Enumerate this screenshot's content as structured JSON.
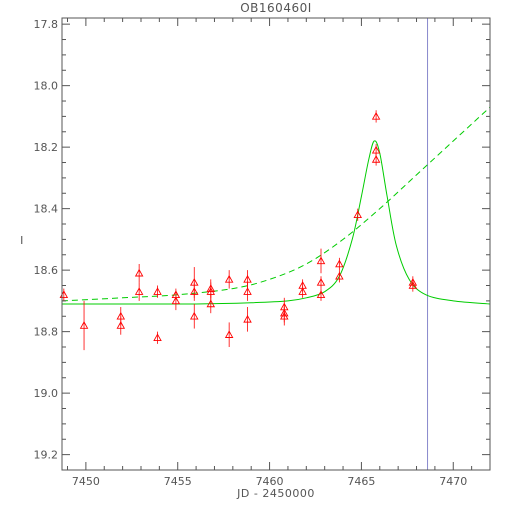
{
  "chart_data": {
    "type": "scatter",
    "title": "OB160460I",
    "xlabel": "JD - 2450000",
    "ylabel": "I",
    "xlim": [
      7448.7,
      7472
    ],
    "ylim": [
      19.25,
      17.78
    ],
    "y_inverted": true,
    "grid": false,
    "x_ticks": [
      7450,
      7455,
      7460,
      7465,
      7470
    ],
    "x_tick_labels": [
      "7450",
      "7455",
      "7460",
      "7465",
      "7470"
    ],
    "y_ticks": [
      17.8,
      18.0,
      18.2,
      18.4,
      18.6,
      18.8,
      19.0,
      19.2
    ],
    "y_tick_labels": [
      "17.8",
      "18.0",
      "18.2",
      "18.4",
      "18.6",
      "18.8",
      "19.0",
      "19.2"
    ],
    "colors": {
      "observations": "#ff0000",
      "model_fits": "#00cc00",
      "vertical_marker": "#8888cc",
      "axes": "#555555"
    },
    "observations": [
      {
        "x": 7448.8,
        "y": 18.68,
        "err": 0.02
      },
      {
        "x": 7449.9,
        "y": 18.78,
        "err": 0.08
      },
      {
        "x": 7451.9,
        "y": 18.75,
        "err": 0.03
      },
      {
        "x": 7451.9,
        "y": 18.78,
        "err": 0.03
      },
      {
        "x": 7452.9,
        "y": 18.61,
        "err": 0.03
      },
      {
        "x": 7452.9,
        "y": 18.67,
        "err": 0.03
      },
      {
        "x": 7453.9,
        "y": 18.67,
        "err": 0.02
      },
      {
        "x": 7453.9,
        "y": 18.82,
        "err": 0.02
      },
      {
        "x": 7454.9,
        "y": 18.68,
        "err": 0.02
      },
      {
        "x": 7454.9,
        "y": 18.7,
        "err": 0.03
      },
      {
        "x": 7455.9,
        "y": 18.64,
        "err": 0.05
      },
      {
        "x": 7455.9,
        "y": 18.67,
        "err": 0.03
      },
      {
        "x": 7455.9,
        "y": 18.75,
        "err": 0.04
      },
      {
        "x": 7456.8,
        "y": 18.67,
        "err": 0.03
      },
      {
        "x": 7456.8,
        "y": 18.66,
        "err": 0.03
      },
      {
        "x": 7456.8,
        "y": 18.71,
        "err": 0.03
      },
      {
        "x": 7457.8,
        "y": 18.63,
        "err": 0.03
      },
      {
        "x": 7457.8,
        "y": 18.81,
        "err": 0.04
      },
      {
        "x": 7458.8,
        "y": 18.63,
        "err": 0.03
      },
      {
        "x": 7458.8,
        "y": 18.67,
        "err": 0.03
      },
      {
        "x": 7458.8,
        "y": 18.76,
        "err": 0.04
      },
      {
        "x": 7460.8,
        "y": 18.72,
        "err": 0.03
      },
      {
        "x": 7460.8,
        "y": 18.74,
        "err": 0.03
      },
      {
        "x": 7460.8,
        "y": 18.75,
        "err": 0.03
      },
      {
        "x": 7461.8,
        "y": 18.65,
        "err": 0.02
      },
      {
        "x": 7461.8,
        "y": 18.67,
        "err": 0.02
      },
      {
        "x": 7462.8,
        "y": 18.57,
        "err": 0.04
      },
      {
        "x": 7462.8,
        "y": 18.64,
        "err": 0.02
      },
      {
        "x": 7462.8,
        "y": 18.68,
        "err": 0.02
      },
      {
        "x": 7463.8,
        "y": 18.58,
        "err": 0.02
      },
      {
        "x": 7463.8,
        "y": 18.62,
        "err": 0.02
      },
      {
        "x": 7464.8,
        "y": 18.42,
        "err": 0.02
      },
      {
        "x": 7465.8,
        "y": 18.1,
        "err": 0.02
      },
      {
        "x": 7465.8,
        "y": 18.21,
        "err": 0.02
      },
      {
        "x": 7465.8,
        "y": 18.24,
        "err": 0.02
      },
      {
        "x": 7467.8,
        "y": 18.64,
        "err": 0.02
      },
      {
        "x": 7467.8,
        "y": 18.65,
        "err": 0.02
      }
    ],
    "series": [
      {
        "style": "solid",
        "x": [
          7448.7,
          7452,
          7456,
          7459,
          7461,
          7462,
          7463,
          7463.8,
          7464.5,
          7465,
          7465.4,
          7465.7,
          7466,
          7466.4,
          7466.9,
          7467.6,
          7468.5,
          7470,
          7472
        ],
        "y": [
          18.71,
          18.71,
          18.71,
          18.706,
          18.7,
          18.69,
          18.67,
          18.62,
          18.5,
          18.36,
          18.24,
          18.18,
          18.22,
          18.36,
          18.52,
          18.63,
          18.68,
          18.7,
          18.71
        ]
      },
      {
        "style": "dashed",
        "x": [
          7448.7,
          7452,
          7455,
          7458,
          7460,
          7462,
          7464,
          7466,
          7468,
          7470,
          7472
        ],
        "y": [
          18.7,
          18.69,
          18.68,
          18.66,
          18.63,
          18.58,
          18.5,
          18.4,
          18.29,
          18.18,
          18.07
        ]
      }
    ],
    "vertical_line_x": 7468.6
  }
}
